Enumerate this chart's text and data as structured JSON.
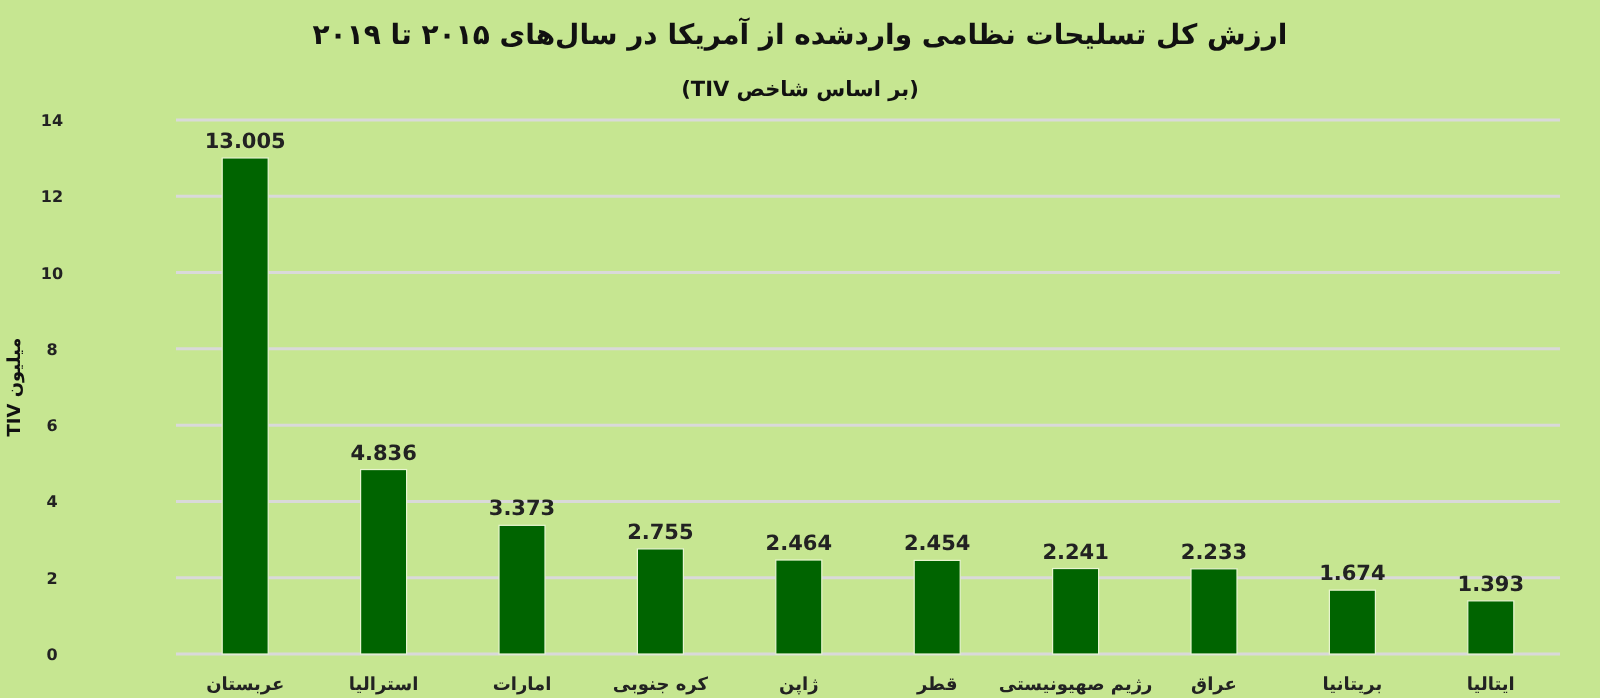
{
  "chart_data": {
    "type": "bar",
    "title": "ارزش کل تسلیحات نظامی واردشده از آمریکا در سال‌های ۲۰۱۵ تا ۲۰۱۹",
    "subtitle": "(بر اساس شاخص TIV)",
    "ylabel": "میلیون TIV",
    "categories": [
      "عربستان",
      "استرالیا",
      "امارات",
      "کره جنوبی",
      "ژاپن",
      "قطر",
      "رژیم صهیونیستی",
      "عراق",
      "بریتانیا",
      "ایتالیا"
    ],
    "values": [
      13.005,
      4.836,
      3.373,
      2.755,
      2.464,
      2.454,
      2.241,
      2.233,
      1.674,
      1.393
    ],
    "color": "#006400",
    "ylim": [
      0,
      14
    ],
    "yticks": [
      0,
      2,
      4,
      6,
      8,
      10,
      12,
      14
    ],
    "grid": "y",
    "data_labels": true
  }
}
